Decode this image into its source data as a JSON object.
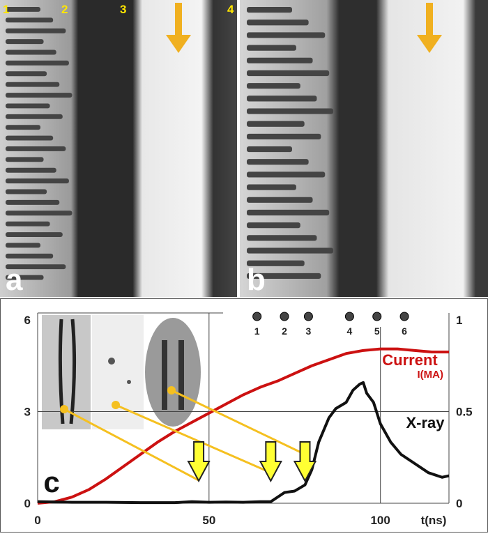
{
  "panels": {
    "a": {
      "letter": "a",
      "electrodes": [
        "1",
        "2",
        "3",
        "4"
      ]
    },
    "b": {
      "letter": "b"
    }
  },
  "colors": {
    "arrow": "#f0b020",
    "current": "#cc1111",
    "xray": "#111111",
    "insert_dot": "#f5c020",
    "time_arrow": "#ffff33"
  },
  "chart_data": {
    "type": "line",
    "panel_letter": "c",
    "xlabel": "t(ns)",
    "xlim": [
      0,
      120
    ],
    "x_ticks": [
      "0",
      "50",
      "100"
    ],
    "y_left_lim": [
      0,
      6
    ],
    "y_left_ticks": [
      "0",
      "3",
      "6"
    ],
    "y_right_lim": [
      0,
      1
    ],
    "y_right_ticks": [
      "0",
      "0.5",
      "1"
    ],
    "grid": true,
    "series": [
      {
        "name": "Current",
        "unit_label": "I(MA)",
        "axis": "left",
        "x": [
          0,
          5,
          10,
          15,
          20,
          25,
          30,
          35,
          40,
          45,
          50,
          55,
          60,
          65,
          70,
          75,
          80,
          85,
          90,
          95,
          100,
          105,
          110,
          115,
          120
        ],
        "y": [
          0,
          0.05,
          0.2,
          0.45,
          0.8,
          1.2,
          1.6,
          2.0,
          2.35,
          2.65,
          2.95,
          3.25,
          3.55,
          3.8,
          4.0,
          4.25,
          4.5,
          4.7,
          4.9,
          5.0,
          5.05,
          5.05,
          5.0,
          4.95,
          4.95
        ]
      },
      {
        "name": "X-ray",
        "axis": "left",
        "x": [
          0,
          10,
          20,
          30,
          40,
          45,
          50,
          55,
          60,
          65,
          68,
          70,
          72,
          75,
          78,
          80,
          82,
          85,
          87,
          90,
          92,
          94,
          95,
          96,
          98,
          100,
          103,
          106,
          110,
          114,
          118,
          120
        ],
        "y": [
          0.05,
          0.03,
          0.03,
          0.02,
          0.02,
          0.05,
          0.03,
          0.04,
          0.03,
          0.05,
          0.05,
          0.2,
          0.35,
          0.4,
          0.6,
          1.1,
          2.0,
          2.8,
          3.1,
          3.3,
          3.7,
          3.9,
          3.95,
          3.6,
          3.3,
          2.6,
          2.0,
          1.6,
          1.3,
          1.0,
          0.85,
          0.9
        ]
      }
    ],
    "markers": {
      "labels": [
        "1",
        "2",
        "3",
        "4",
        "5",
        "6"
      ],
      "t": [
        64,
        72,
        79,
        91,
        99,
        107
      ]
    },
    "time_arrows": {
      "t": [
        47,
        68,
        78
      ]
    },
    "insert_links": [
      {
        "t": 47,
        "y": 0.75
      },
      {
        "t": 68,
        "y": 1.0
      },
      {
        "t": 78,
        "y": 1.6
      }
    ]
  }
}
